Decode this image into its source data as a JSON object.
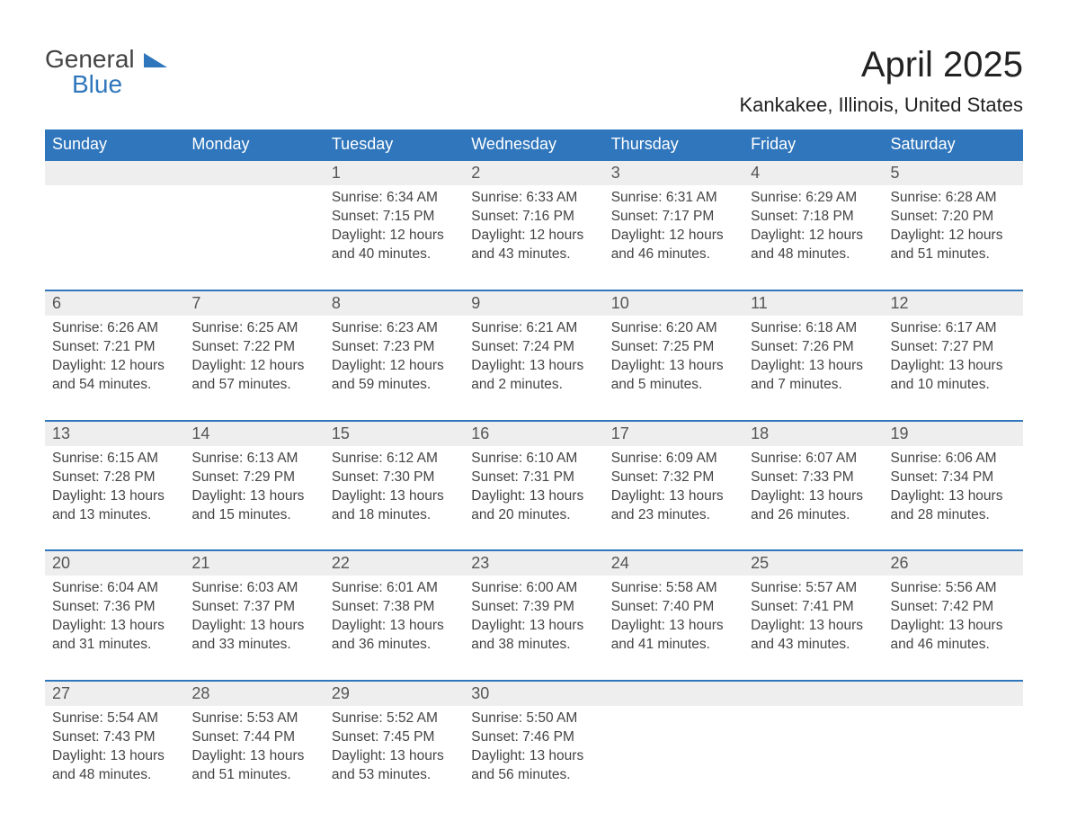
{
  "brand": {
    "general": "General",
    "blue": "Blue"
  },
  "title": {
    "month": "April 2025",
    "location": "Kankakee, Illinois, United States"
  },
  "colors": {
    "header_bg": "#2f76bc",
    "header_text": "#ffffff",
    "daynum_bg": "#eeeeee",
    "daynum_border_top": "#2f76bc",
    "text": "#444444",
    "title_text": "#222222",
    "logo_gray": "#444444",
    "logo_blue": "#2f76bc"
  },
  "typography": {
    "month_title_fontsize": 40,
    "location_fontsize": 22,
    "weekday_fontsize": 18,
    "daynum_fontsize": 18,
    "detail_fontsize": 15.5
  },
  "weekdays": [
    "Sunday",
    "Monday",
    "Tuesday",
    "Wednesday",
    "Thursday",
    "Friday",
    "Saturday"
  ],
  "weeks": [
    [
      null,
      null,
      {
        "day": "1",
        "sunrise": "Sunrise: 6:34 AM",
        "sunset": "Sunset: 7:15 PM",
        "daylight": "Daylight: 12 hours and 40 minutes."
      },
      {
        "day": "2",
        "sunrise": "Sunrise: 6:33 AM",
        "sunset": "Sunset: 7:16 PM",
        "daylight": "Daylight: 12 hours and 43 minutes."
      },
      {
        "day": "3",
        "sunrise": "Sunrise: 6:31 AM",
        "sunset": "Sunset: 7:17 PM",
        "daylight": "Daylight: 12 hours and 46 minutes."
      },
      {
        "day": "4",
        "sunrise": "Sunrise: 6:29 AM",
        "sunset": "Sunset: 7:18 PM",
        "daylight": "Daylight: 12 hours and 48 minutes."
      },
      {
        "day": "5",
        "sunrise": "Sunrise: 6:28 AM",
        "sunset": "Sunset: 7:20 PM",
        "daylight": "Daylight: 12 hours and 51 minutes."
      }
    ],
    [
      {
        "day": "6",
        "sunrise": "Sunrise: 6:26 AM",
        "sunset": "Sunset: 7:21 PM",
        "daylight": "Daylight: 12 hours and 54 minutes."
      },
      {
        "day": "7",
        "sunrise": "Sunrise: 6:25 AM",
        "sunset": "Sunset: 7:22 PM",
        "daylight": "Daylight: 12 hours and 57 minutes."
      },
      {
        "day": "8",
        "sunrise": "Sunrise: 6:23 AM",
        "sunset": "Sunset: 7:23 PM",
        "daylight": "Daylight: 12 hours and 59 minutes."
      },
      {
        "day": "9",
        "sunrise": "Sunrise: 6:21 AM",
        "sunset": "Sunset: 7:24 PM",
        "daylight": "Daylight: 13 hours and 2 minutes."
      },
      {
        "day": "10",
        "sunrise": "Sunrise: 6:20 AM",
        "sunset": "Sunset: 7:25 PM",
        "daylight": "Daylight: 13 hours and 5 minutes."
      },
      {
        "day": "11",
        "sunrise": "Sunrise: 6:18 AM",
        "sunset": "Sunset: 7:26 PM",
        "daylight": "Daylight: 13 hours and 7 minutes."
      },
      {
        "day": "12",
        "sunrise": "Sunrise: 6:17 AM",
        "sunset": "Sunset: 7:27 PM",
        "daylight": "Daylight: 13 hours and 10 minutes."
      }
    ],
    [
      {
        "day": "13",
        "sunrise": "Sunrise: 6:15 AM",
        "sunset": "Sunset: 7:28 PM",
        "daylight": "Daylight: 13 hours and 13 minutes."
      },
      {
        "day": "14",
        "sunrise": "Sunrise: 6:13 AM",
        "sunset": "Sunset: 7:29 PM",
        "daylight": "Daylight: 13 hours and 15 minutes."
      },
      {
        "day": "15",
        "sunrise": "Sunrise: 6:12 AM",
        "sunset": "Sunset: 7:30 PM",
        "daylight": "Daylight: 13 hours and 18 minutes."
      },
      {
        "day": "16",
        "sunrise": "Sunrise: 6:10 AM",
        "sunset": "Sunset: 7:31 PM",
        "daylight": "Daylight: 13 hours and 20 minutes."
      },
      {
        "day": "17",
        "sunrise": "Sunrise: 6:09 AM",
        "sunset": "Sunset: 7:32 PM",
        "daylight": "Daylight: 13 hours and 23 minutes."
      },
      {
        "day": "18",
        "sunrise": "Sunrise: 6:07 AM",
        "sunset": "Sunset: 7:33 PM",
        "daylight": "Daylight: 13 hours and 26 minutes."
      },
      {
        "day": "19",
        "sunrise": "Sunrise: 6:06 AM",
        "sunset": "Sunset: 7:34 PM",
        "daylight": "Daylight: 13 hours and 28 minutes."
      }
    ],
    [
      {
        "day": "20",
        "sunrise": "Sunrise: 6:04 AM",
        "sunset": "Sunset: 7:36 PM",
        "daylight": "Daylight: 13 hours and 31 minutes."
      },
      {
        "day": "21",
        "sunrise": "Sunrise: 6:03 AM",
        "sunset": "Sunset: 7:37 PM",
        "daylight": "Daylight: 13 hours and 33 minutes."
      },
      {
        "day": "22",
        "sunrise": "Sunrise: 6:01 AM",
        "sunset": "Sunset: 7:38 PM",
        "daylight": "Daylight: 13 hours and 36 minutes."
      },
      {
        "day": "23",
        "sunrise": "Sunrise: 6:00 AM",
        "sunset": "Sunset: 7:39 PM",
        "daylight": "Daylight: 13 hours and 38 minutes."
      },
      {
        "day": "24",
        "sunrise": "Sunrise: 5:58 AM",
        "sunset": "Sunset: 7:40 PM",
        "daylight": "Daylight: 13 hours and 41 minutes."
      },
      {
        "day": "25",
        "sunrise": "Sunrise: 5:57 AM",
        "sunset": "Sunset: 7:41 PM",
        "daylight": "Daylight: 13 hours and 43 minutes."
      },
      {
        "day": "26",
        "sunrise": "Sunrise: 5:56 AM",
        "sunset": "Sunset: 7:42 PM",
        "daylight": "Daylight: 13 hours and 46 minutes."
      }
    ],
    [
      {
        "day": "27",
        "sunrise": "Sunrise: 5:54 AM",
        "sunset": "Sunset: 7:43 PM",
        "daylight": "Daylight: 13 hours and 48 minutes."
      },
      {
        "day": "28",
        "sunrise": "Sunrise: 5:53 AM",
        "sunset": "Sunset: 7:44 PM",
        "daylight": "Daylight: 13 hours and 51 minutes."
      },
      {
        "day": "29",
        "sunrise": "Sunrise: 5:52 AM",
        "sunset": "Sunset: 7:45 PM",
        "daylight": "Daylight: 13 hours and 53 minutes."
      },
      {
        "day": "30",
        "sunrise": "Sunrise: 5:50 AM",
        "sunset": "Sunset: 7:46 PM",
        "daylight": "Daylight: 13 hours and 56 minutes."
      },
      null,
      null,
      null
    ]
  ]
}
